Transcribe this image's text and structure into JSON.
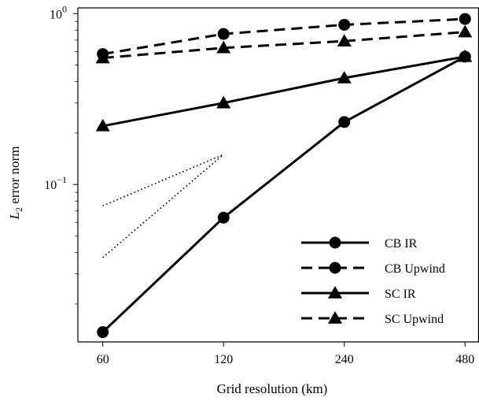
{
  "chart_data": {
    "type": "line",
    "title": "",
    "xlabel": "Grid resolution (km)",
    "ylabel": "L2 error norm",
    "ylabel_parts": {
      "symbol": "L",
      "subscript": "2",
      "rest": " error norm"
    },
    "x_scale": "log2",
    "y_scale": "log10",
    "xlim": [
      52,
      520
    ],
    "ylim": [
      0.012,
      1.08
    ],
    "x_ticks": [
      60,
      120,
      240,
      480
    ],
    "x_tick_labels": [
      "60",
      "120",
      "240",
      "480"
    ],
    "y_ticks": [
      0.1,
      1
    ],
    "y_tick_labels": [
      {
        "base": "10",
        "exp": "−1"
      },
      {
        "base": "10",
        "exp": "0"
      }
    ],
    "grid": false,
    "legend_position": "lower-right",
    "x": [
      60,
      120,
      240,
      480
    ],
    "series": [
      {
        "name": "CB IR",
        "values": [
          0.0137,
          0.064,
          0.232,
          0.56
        ],
        "marker": "circle",
        "linestyle": "solid"
      },
      {
        "name": "CB Upwind",
        "values": [
          0.58,
          0.76,
          0.86,
          0.93
        ],
        "marker": "circle",
        "linestyle": "dashed"
      },
      {
        "name": "SC IR",
        "values": [
          0.22,
          0.3,
          0.42,
          0.56
        ],
        "marker": "triangle",
        "linestyle": "solid"
      },
      {
        "name": "SC Upwind",
        "values": [
          0.55,
          0.63,
          0.69,
          0.78
        ],
        "marker": "triangle",
        "linestyle": "dashed"
      }
    ],
    "reference_lines": [
      {
        "x": [
          60,
          120
        ],
        "y": [
          0.0374,
          0.15
        ],
        "linestyle": "dotted"
      },
      {
        "x": [
          60,
          120
        ],
        "y": [
          0.075,
          0.15
        ],
        "linestyle": "dotted"
      }
    ]
  }
}
